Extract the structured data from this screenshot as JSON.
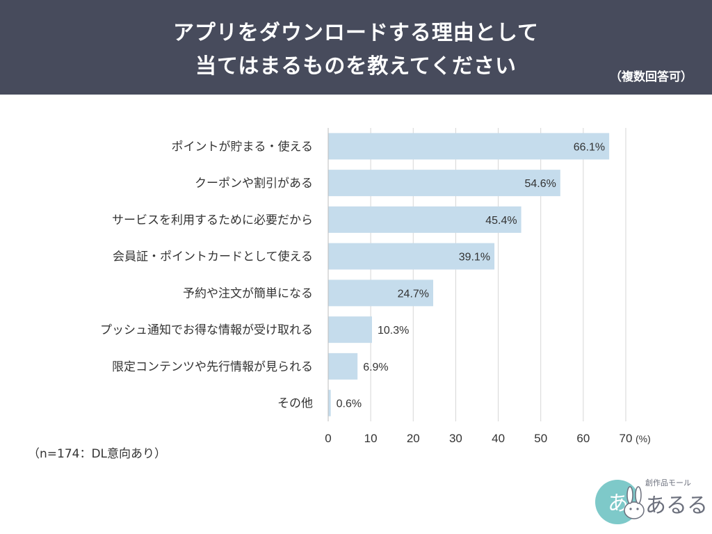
{
  "header": {
    "title_line1": "アプリをダウンロードする理由として",
    "title_line2": "当てはまるものを教えてください",
    "note": "（複数回答可）"
  },
  "footer": {
    "sample_note": "（n=174：DL意向あり）"
  },
  "logo": {
    "sub_text": "創作品モール",
    "main_text": "あるる"
  },
  "colors": {
    "header_bg": "#474b5c",
    "bar": "#c5dcec",
    "grid": "#d6d6d6",
    "text": "#333333"
  },
  "chart_data": {
    "type": "bar",
    "orientation": "horizontal",
    "categories": [
      "ポイントが貯まる・使える",
      "クーポンや割引がある",
      "サービスを利用するために必要だから",
      "会員証・ポイントカードとして使える",
      "予約や注文が簡単になる",
      "プッシュ通知でお得な情報が受け取れる",
      "限定コンテンツや先行情報が見られる",
      "その他"
    ],
    "values": [
      66.1,
      54.6,
      45.4,
      39.1,
      24.7,
      10.3,
      6.9,
      0.6
    ],
    "value_labels": [
      "66.1%",
      "54.6%",
      "45.4%",
      "39.1%",
      "24.7%",
      "10.3%",
      "6.9%",
      "0.6%"
    ],
    "xlim": [
      0,
      70
    ],
    "xticks": [
      "0",
      "10",
      "20",
      "30",
      "40",
      "50",
      "60",
      "70"
    ],
    "xunit": "(%)",
    "grid": true
  }
}
